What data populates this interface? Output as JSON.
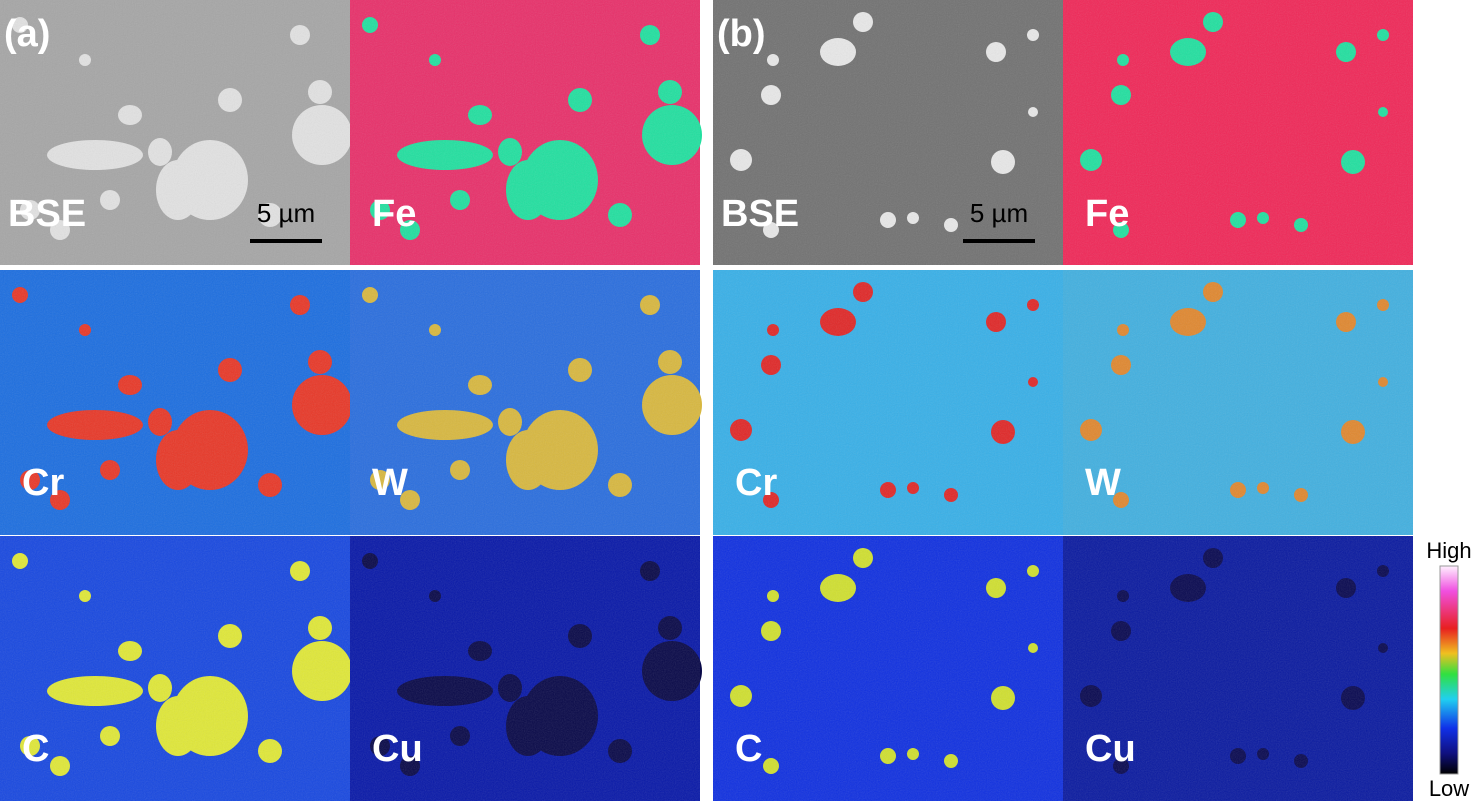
{
  "panel_labels": [
    "(a)",
    "(b)"
  ],
  "groups": [
    {
      "maps": [
        "BSE",
        "Fe",
        "Cr",
        "W",
        "C",
        "Cu"
      ],
      "scale_bar": "5 µm"
    },
    {
      "maps": [
        "BSE",
        "Fe",
        "Cr",
        "W",
        "C",
        "Cu"
      ],
      "scale_bar": "5 µm"
    }
  ],
  "colorbar": {
    "high": "High",
    "low": "Low"
  }
}
